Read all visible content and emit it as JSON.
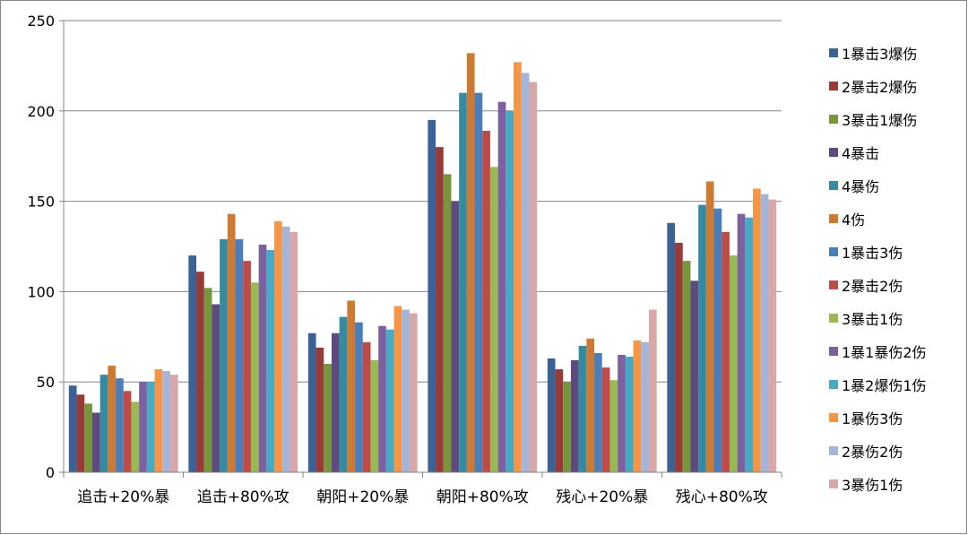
{
  "chart_data": {
    "type": "bar",
    "title": "",
    "xlabel": "",
    "ylabel": "",
    "ylim": [
      0,
      250
    ],
    "yticks": [
      0,
      50,
      100,
      150,
      200,
      250
    ],
    "grid": true,
    "legend_position": "right",
    "categories": [
      "追击+20%暴",
      "追击+80%攻",
      "朝阳+20%暴",
      "朝阳+80%攻",
      "残心+20%暴",
      "残心+80%攻"
    ],
    "series": [
      {
        "name": "1暴击3爆伤",
        "color": "#3b6296",
        "values": [
          48,
          120,
          77,
          195,
          63,
          138
        ]
      },
      {
        "name": "2暴击2爆伤",
        "color": "#983a38",
        "values": [
          43,
          111,
          69,
          180,
          57,
          127
        ]
      },
      {
        "name": "3暴击1爆伤",
        "color": "#76953c",
        "values": [
          38,
          102,
          60,
          165,
          50,
          117
        ]
      },
      {
        "name": "4暴击",
        "color": "#5f4a7f",
        "values": [
          33,
          93,
          77,
          150,
          62,
          106
        ]
      },
      {
        "name": "4暴伤",
        "color": "#348aa0",
        "values": [
          54,
          129,
          86,
          210,
          70,
          148
        ]
      },
      {
        "name": "4伤",
        "color": "#cd7a34",
        "values": [
          59,
          143,
          95,
          232,
          74,
          161
        ]
      },
      {
        "name": "1暴击3伤",
        "color": "#4a7ebb",
        "values": [
          52,
          129,
          83,
          210,
          66,
          146
        ]
      },
      {
        "name": "2暴击2伤",
        "color": "#be4b48",
        "values": [
          45,
          117,
          72,
          189,
          58,
          133
        ]
      },
      {
        "name": "3暴击1伤",
        "color": "#98b954",
        "values": [
          39,
          105,
          62,
          169,
          51,
          120
        ]
      },
      {
        "name": "1暴1暴伤2伤",
        "color": "#7d60a0",
        "values": [
          50,
          126,
          81,
          205,
          65,
          143
        ]
      },
      {
        "name": "1暴2爆伤1伤",
        "color": "#46aac5",
        "values": [
          50,
          123,
          79,
          200,
          64,
          141
        ]
      },
      {
        "name": "1暴伤3伤",
        "color": "#f69546",
        "values": [
          57,
          139,
          92,
          227,
          73,
          157
        ]
      },
      {
        "name": "2暴伤2伤",
        "color": "#a5b5d8",
        "values": [
          56,
          136,
          90,
          221,
          72,
          154
        ]
      },
      {
        "name": "3暴伤1伤",
        "color": "#d7a8a7",
        "values": [
          54,
          133,
          88,
          216,
          90,
          151
        ]
      }
    ]
  }
}
